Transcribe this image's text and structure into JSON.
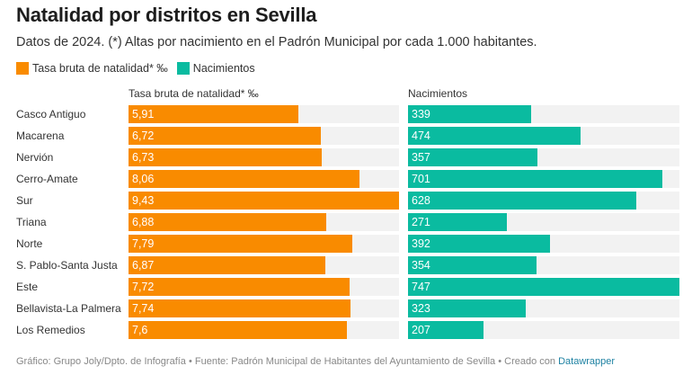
{
  "header": {
    "title": "Natalidad por distritos en Sevilla",
    "subtitle": "Datos de 2024. (*) Altas por nacimiento en el Padrón Municipal por cada 1.000 habitantes."
  },
  "colors": {
    "tasa": "#f98b00",
    "nacimientos": "#0abba0",
    "track": "#f2f2f2",
    "link": "#1d81a2"
  },
  "footer": {
    "prefix": "Gráfico: Grupo Joly/Dpto. de Infografía • Fuente: Padrón Municipal de Habitantes del Ayuntamiento de Sevilla • Creado con ",
    "link_label": "Datawrapper"
  },
  "chart_data": {
    "type": "bar",
    "orientation": "horizontal",
    "title": "Natalidad por distritos en Sevilla",
    "subtitle": "Datos de 2024. (*) Altas por nacimiento en el Padrón Municipal por cada 1.000 habitantes.",
    "legend": [
      {
        "label": "Tasa bruta de natalidad* ‰",
        "color": "#f98b00"
      },
      {
        "label": "Nacimientos",
        "color": "#0abba0"
      }
    ],
    "legend_position": "top-left",
    "categories": [
      "Casco Antiguo",
      "Macarena",
      "Nervión",
      "Cerro-Amate",
      "Sur",
      "Triana",
      "Norte",
      "S. Pablo-Santa Justa",
      "Este",
      "Bellavista-La Palmera",
      "Los Remedios"
    ],
    "series": [
      {
        "name": "Tasa bruta de natalidad* ‰",
        "color": "#f98b00",
        "values": [
          5.91,
          6.72,
          6.73,
          8.06,
          9.43,
          6.88,
          7.79,
          6.87,
          7.72,
          7.74,
          7.6
        ],
        "labels": [
          "5,91",
          "6,72",
          "6,73",
          "8,06",
          "9,43",
          "6,88",
          "7,79",
          "6,87",
          "7,72",
          "7,74",
          "7,6"
        ],
        "xlim": [
          0,
          9.43
        ]
      },
      {
        "name": "Nacimientos",
        "color": "#0abba0",
        "values": [
          339,
          474,
          357,
          701,
          628,
          271,
          392,
          354,
          747,
          323,
          207
        ],
        "labels": [
          "339",
          "474",
          "357",
          "701",
          "628",
          "271",
          "392",
          "354",
          "747",
          "323",
          "207"
        ],
        "xlim": [
          0,
          747
        ]
      }
    ],
    "grid": false
  }
}
